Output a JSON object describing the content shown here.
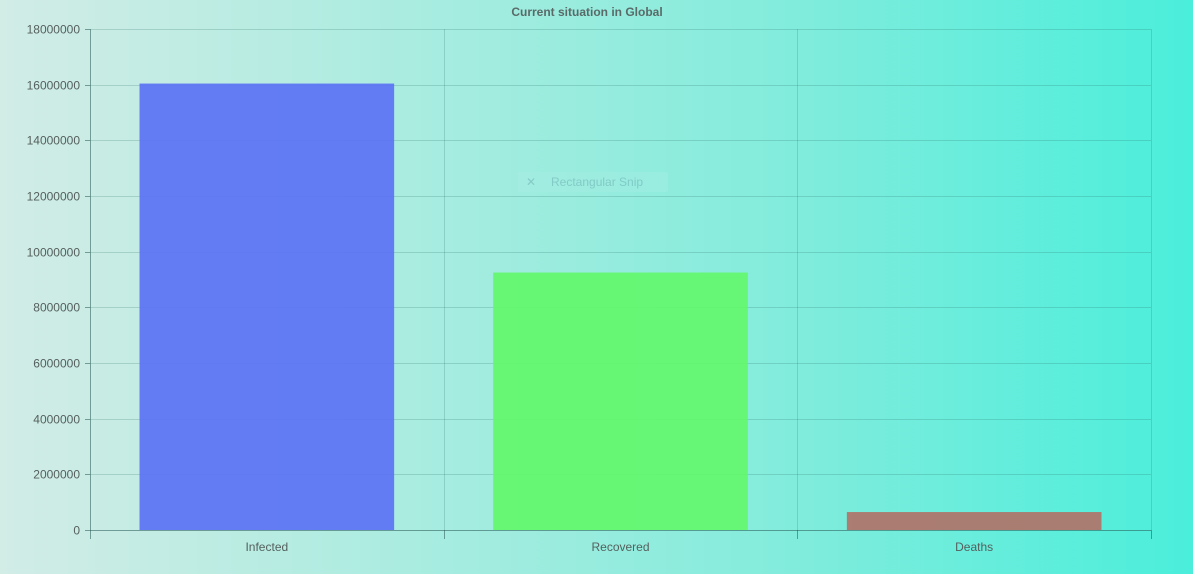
{
  "chart_data": {
    "type": "bar",
    "title": "Current situation in Global",
    "categories": [
      "Infected",
      "Recovered",
      "Deaths"
    ],
    "values": [
      16040000,
      9250000,
      645000
    ],
    "colors": [
      "#5b72f4",
      "#62f76b",
      "#b07368"
    ],
    "xlabel": "",
    "ylabel": "",
    "ylim": [
      0,
      18000000
    ],
    "yticks": [
      0,
      2000000,
      4000000,
      6000000,
      8000000,
      10000000,
      12000000,
      14000000,
      16000000,
      18000000
    ],
    "grid": true,
    "legend": "none"
  },
  "overlay": {
    "text": "Rectangular Snip",
    "icon": "close-icon"
  }
}
